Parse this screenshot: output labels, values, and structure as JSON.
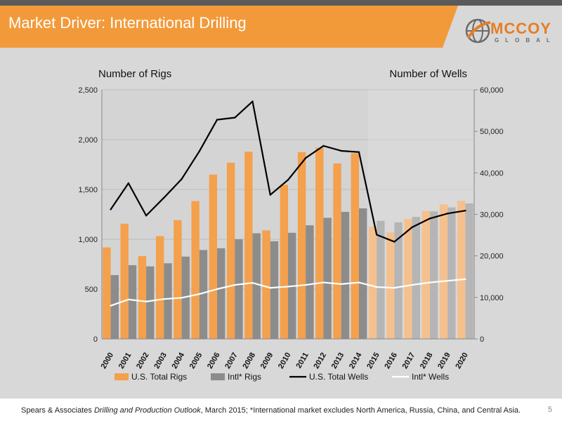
{
  "slide": {
    "title": "Market Driver: International Drilling",
    "logo_text_main": "MCCOY",
    "logo_text_sub": "GLOBAL",
    "footnote_prefix": "Spears & Associates ",
    "footnote_italic": "Drilling and Production Outlook",
    "footnote_suffix": ", March 2015; *International market excludes North America, Russia, China, and Central Asia.",
    "page_number": "5"
  },
  "colors": {
    "us_rigs": "#f4a04c",
    "intl_rigs": "#8c8c8c",
    "us_rigs_forecast": "#f6c08d",
    "intl_rigs_forecast": "#b5b5b5",
    "us_wells": "#000000",
    "intl_wells": "#ffffff",
    "accent": "#f29a3a"
  },
  "chart_data": {
    "type": "bar",
    "left_axis_title": "Number of Rigs",
    "right_axis_title": "Number of Wells",
    "categories": [
      "2000",
      "2001",
      "2002",
      "2003",
      "2004",
      "2005",
      "2006",
      "2007",
      "2008",
      "2009",
      "2010",
      "2011",
      "2012",
      "2013",
      "2014",
      "2015",
      "2016",
      "2017",
      "2018",
      "2019",
      "2020"
    ],
    "ylim_left": [
      0,
      2500
    ],
    "yticks_left": [
      "0",
      "500",
      "1,000",
      "1,500",
      "2,000",
      "2,500"
    ],
    "ylim_right": [
      0,
      60000
    ],
    "yticks_right": [
      "0",
      "10,000",
      "20,000",
      "30,000",
      "40,000",
      "50,000",
      "60,000"
    ],
    "forecast_start_index": 15,
    "grid": true,
    "legend_position": "bottom",
    "series": [
      {
        "name": "U.S. Total Rigs",
        "kind": "bar",
        "axis": "left",
        "values": [
          918,
          1156,
          831,
          1032,
          1192,
          1383,
          1649,
          1768,
          1879,
          1089,
          1546,
          1875,
          1919,
          1761,
          1862,
          1125,
          1070,
          1205,
          1285,
          1350,
          1385
        ]
      },
      {
        "name": "Intl* Rigs",
        "kind": "bar",
        "axis": "left",
        "values": [
          640,
          740,
          728,
          759,
          826,
          892,
          910,
          1000,
          1060,
          980,
          1065,
          1140,
          1215,
          1275,
          1310,
          1185,
          1170,
          1225,
          1280,
          1320,
          1360
        ]
      },
      {
        "name": "U.S. Total Wells",
        "kind": "line",
        "axis": "right",
        "values": [
          31200,
          37500,
          29700,
          34000,
          38500,
          45200,
          52800,
          53300,
          57200,
          34700,
          38300,
          43600,
          46500,
          45300,
          45000,
          25100,
          23400,
          26900,
          29000,
          30200,
          30900
        ]
      },
      {
        "name": "Intl* Wells",
        "kind": "line",
        "axis": "right",
        "values": [
          8000,
          9500,
          9000,
          9600,
          9900,
          10800,
          12000,
          13000,
          13500,
          12300,
          12600,
          13000,
          13600,
          13200,
          13600,
          12500,
          12300,
          13000,
          13600,
          14000,
          14400
        ]
      }
    ]
  }
}
